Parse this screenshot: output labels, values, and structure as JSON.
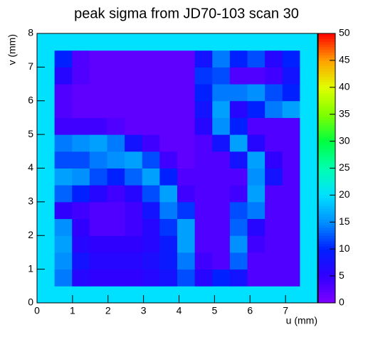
{
  "chart_data": {
    "type": "heatmap",
    "title": "peak sigma from JD70-103 scan 30",
    "x_label": "u (mm)",
    "y_label": "v (mm)",
    "x_edges": [
      0,
      0.49375,
      0.9875,
      1.48125,
      1.975,
      2.46875,
      2.9625,
      3.45625,
      3.95,
      4.44375,
      4.9375,
      5.43125,
      5.925,
      6.41875,
      6.9125,
      7.40625,
      7.9
    ],
    "y_edges": [
      0,
      0.5,
      1,
      1.5,
      2,
      2.5,
      3,
      3.5,
      4,
      4.5,
      5,
      5.5,
      6,
      6.5,
      7,
      7.5,
      8
    ],
    "z": [
      [
        20,
        20,
        20,
        20,
        20,
        20,
        20,
        20,
        20,
        20,
        20,
        20,
        20,
        20,
        20,
        20
      ],
      [
        20,
        14,
        6,
        5,
        5,
        5,
        6,
        8,
        12,
        6,
        10,
        8,
        3,
        3,
        3,
        20
      ],
      [
        20,
        15,
        8,
        6,
        6,
        6,
        7,
        9,
        14,
        4,
        3,
        13,
        3,
        3,
        3,
        20
      ],
      [
        20,
        16,
        6,
        5,
        5,
        5,
        6,
        9,
        16,
        3,
        3,
        15,
        4,
        3,
        3,
        20
      ],
      [
        20,
        15,
        5,
        3,
        3,
        4,
        6,
        11,
        16,
        3,
        3,
        13,
        6,
        3,
        3,
        20
      ],
      [
        20,
        5,
        4,
        3,
        3,
        4,
        8,
        14,
        11,
        3,
        3,
        12,
        14,
        3,
        3,
        20
      ],
      [
        20,
        13,
        10,
        6,
        4,
        6,
        12,
        16,
        4,
        3,
        3,
        4,
        16,
        3,
        3,
        20
      ],
      [
        20,
        16,
        15,
        12,
        10,
        13,
        16,
        10,
        3,
        3,
        3,
        3,
        15,
        8,
        3,
        20
      ],
      [
        20,
        12,
        12,
        14,
        15,
        16,
        12,
        4,
        2,
        3,
        3,
        8,
        16,
        5,
        3,
        20
      ],
      [
        20,
        14,
        15,
        16,
        14,
        8,
        4,
        2,
        2,
        3,
        8,
        16,
        6,
        3,
        3,
        20
      ],
      [
        20,
        4,
        4,
        4,
        3,
        2,
        2,
        2,
        2,
        6,
        15,
        10,
        3,
        3,
        3,
        20
      ],
      [
        20,
        3,
        2,
        2,
        2,
        2,
        2,
        2,
        2,
        8,
        16,
        6,
        10,
        14,
        16,
        20
      ],
      [
        20,
        3,
        2,
        2,
        2,
        2,
        2,
        2,
        2,
        10,
        14,
        14,
        15,
        12,
        10,
        20
      ],
      [
        20,
        6,
        3,
        2,
        2,
        2,
        2,
        2,
        2,
        11,
        12,
        3,
        3,
        4,
        8,
        20
      ],
      [
        20,
        10,
        3,
        2,
        2,
        2,
        2,
        2,
        2,
        8,
        14,
        10,
        12,
        6,
        10,
        20
      ],
      [
        20,
        20,
        20,
        20,
        20,
        20,
        20,
        20,
        20,
        20,
        20,
        20,
        20,
        20,
        20,
        20
      ]
    ],
    "xlim": [
      0,
      7.9
    ],
    "ylim": [
      0,
      8
    ],
    "zlim": [
      0,
      50
    ],
    "xticks": [
      0,
      1,
      2,
      3,
      4,
      5,
      6,
      7
    ],
    "yticks": [
      0,
      1,
      2,
      3,
      4,
      5,
      6,
      7,
      8
    ],
    "zticks": [
      0,
      5,
      10,
      15,
      20,
      25,
      30,
      35,
      40,
      45,
      50
    ],
    "colorscale": [
      "#7f00ff",
      "#3000ff",
      "#0020ff",
      "#0090ff",
      "#00e0ff",
      "#00ffb0",
      "#00ff40",
      "#80ff00",
      "#e0ff00",
      "#ffa000",
      "#ff0000"
    ]
  }
}
